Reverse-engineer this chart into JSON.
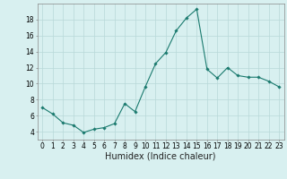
{
  "x": [
    0,
    1,
    2,
    3,
    4,
    5,
    6,
    7,
    8,
    9,
    10,
    11,
    12,
    13,
    14,
    15,
    16,
    17,
    18,
    19,
    20,
    21,
    22,
    23
  ],
  "y": [
    7.0,
    6.2,
    5.1,
    4.8,
    3.9,
    4.3,
    4.5,
    5.0,
    7.5,
    6.5,
    9.6,
    12.5,
    13.9,
    16.6,
    18.2,
    19.3,
    11.8,
    10.7,
    12.0,
    11.0,
    10.8,
    10.8,
    10.3,
    9.6
  ],
  "line_color": "#1a7a6e",
  "marker": "D",
  "marker_size": 1.8,
  "line_width": 0.8,
  "bg_color": "#d8f0f0",
  "grid_color": "#b8d8d8",
  "xlabel": "Humidex (Indice chaleur)",
  "xlim": [
    -0.5,
    23.5
  ],
  "ylim": [
    3,
    20
  ],
  "yticks": [
    4,
    6,
    8,
    10,
    12,
    14,
    16,
    18
  ],
  "xticks": [
    0,
    1,
    2,
    3,
    4,
    5,
    6,
    7,
    8,
    9,
    10,
    11,
    12,
    13,
    14,
    15,
    16,
    17,
    18,
    19,
    20,
    21,
    22,
    23
  ],
  "tick_label_size": 5.5,
  "xlabel_size": 7.0,
  "spine_color": "#888888"
}
